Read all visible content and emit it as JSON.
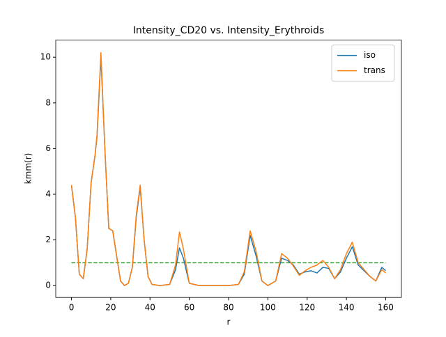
{
  "chart_data": {
    "type": "line",
    "title": "Intensity_CD20 vs. Intensity_Erythroids",
    "x_label": "r",
    "y_label": "kmm(r)",
    "x": [
      0,
      2,
      4,
      6,
      8,
      10,
      12,
      13,
      15,
      17,
      19,
      21,
      23,
      25,
      27,
      29,
      31,
      33,
      35,
      37,
      39,
      41,
      45,
      50,
      53,
      55,
      57,
      60,
      65,
      70,
      75,
      80,
      85,
      88,
      91,
      94,
      97,
      100,
      104,
      107,
      110,
      113,
      116,
      119,
      122,
      125,
      128,
      131,
      134,
      137,
      140,
      143,
      146,
      149,
      152,
      155,
      158,
      160
    ],
    "series": [
      {
        "name": "iso",
        "color": "#1f77b4",
        "values": [
          4.4,
          3.0,
          0.5,
          0.3,
          1.6,
          4.5,
          5.7,
          6.5,
          10.0,
          6.0,
          2.5,
          2.4,
          1.3,
          0.2,
          0.0,
          0.1,
          0.8,
          3.0,
          4.3,
          2.0,
          0.4,
          0.05,
          0.0,
          0.05,
          0.7,
          1.65,
          1.2,
          0.1,
          0,
          0,
          0,
          0,
          0.05,
          0.5,
          2.2,
          1.3,
          0.2,
          0.0,
          0.2,
          1.2,
          1.1,
          0.9,
          0.5,
          0.6,
          0.65,
          0.55,
          0.8,
          0.75,
          0.3,
          0.6,
          1.2,
          1.7,
          0.9,
          0.65,
          0.4,
          0.2,
          0.8,
          0.65
        ]
      },
      {
        "name": "trans",
        "color": "#ff7f0e",
        "values": [
          4.4,
          3.0,
          0.5,
          0.3,
          1.6,
          4.5,
          5.7,
          6.6,
          10.2,
          6.0,
          2.5,
          2.4,
          1.3,
          0.2,
          0.0,
          0.1,
          0.8,
          3.1,
          4.4,
          2.0,
          0.4,
          0.05,
          0.0,
          0.05,
          0.9,
          2.35,
          1.6,
          0.1,
          0,
          0,
          0,
          0,
          0.05,
          0.6,
          2.4,
          1.5,
          0.2,
          0.0,
          0.2,
          1.4,
          1.2,
          0.85,
          0.45,
          0.65,
          0.8,
          0.9,
          1.1,
          0.8,
          0.3,
          0.7,
          1.4,
          1.9,
          1.0,
          0.7,
          0.4,
          0.2,
          0.7,
          0.55
        ]
      }
    ],
    "reference_line": {
      "value": 1,
      "color": "#2ca02c",
      "dashed": true
    },
    "xlim": [
      -8,
      168
    ],
    "ylim": [
      -0.52,
      10.75
    ],
    "xticks": [
      0,
      20,
      40,
      60,
      80,
      100,
      120,
      140,
      160
    ],
    "yticks": [
      0,
      2,
      4,
      6,
      8,
      10
    ],
    "grid": false,
    "legend": "upper right"
  }
}
